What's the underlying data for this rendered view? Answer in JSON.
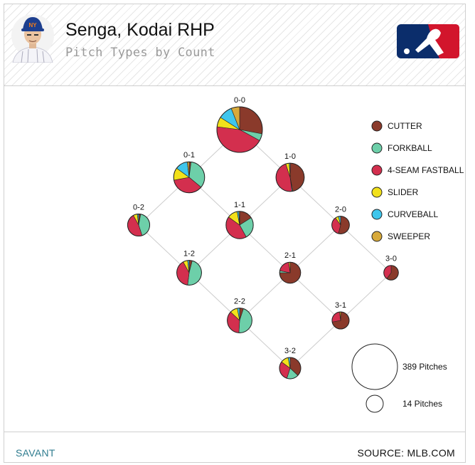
{
  "header": {
    "title": "Senga, Kodai RHP",
    "subtitle": "Pitch Types by Count"
  },
  "footer": {
    "left": "SAVANT",
    "right": "SOURCE: MLB.COM"
  },
  "colors": {
    "CUTTER": "#8a3a2b",
    "FORKBALL": "#6dcfa9",
    "4-SEAM FASTBALL": "#d32f4e",
    "SLIDER": "#f2e11b",
    "CURVEBALL": "#3fc6ec",
    "SWEEPER": "#d7a93a"
  },
  "chart_data": {
    "type": "pie",
    "legend": {
      "placement": "right",
      "items": [
        "CUTTER",
        "FORKBALL",
        "4-SEAM FASTBALL",
        "SLIDER",
        "CURVEBALL",
        "SWEEPER"
      ]
    },
    "size_legend": [
      {
        "label": "389 Pitches",
        "pitches": 389
      },
      {
        "label": "14 Pitches",
        "pitches": 14
      }
    ],
    "counts": [
      {
        "count": "0-0",
        "pitches": 389,
        "mix": {
          "CUTTER": 0.28,
          "FORKBALL": 0.05,
          "4-SEAM FASTBALL": 0.44,
          "SLIDER": 0.07,
          "CURVEBALL": 0.1,
          "SWEEPER": 0.06
        }
      },
      {
        "count": "0-1",
        "pitches": 180,
        "mix": {
          "CUTTER": 0.02,
          "FORKBALL": 0.34,
          "4-SEAM FASTBALL": 0.36,
          "SLIDER": 0.13,
          "CURVEBALL": 0.13,
          "SWEEPER": 0.02
        }
      },
      {
        "count": "1-0",
        "pitches": 150,
        "mix": {
          "CUTTER": 0.47,
          "FORKBALL": 0.01,
          "4-SEAM FASTBALL": 0.47,
          "SLIDER": 0.04,
          "CURVEBALL": 0.01,
          "SWEEPER": 0.0
        }
      },
      {
        "count": "0-2",
        "pitches": 92,
        "mix": {
          "CUTTER": 0.03,
          "FORKBALL": 0.42,
          "4-SEAM FASTBALL": 0.47,
          "SLIDER": 0.06,
          "CURVEBALL": 0.02,
          "SWEEPER": 0.0
        }
      },
      {
        "count": "1-1",
        "pitches": 140,
        "mix": {
          "CUTTER": 0.16,
          "FORKBALL": 0.26,
          "4-SEAM FASTBALL": 0.43,
          "SLIDER": 0.12,
          "CURVEBALL": 0.02,
          "SWEEPER": 0.01
        }
      },
      {
        "count": "2-0",
        "pitches": 58,
        "mix": {
          "CUTTER": 0.54,
          "FORKBALL": 0.0,
          "4-SEAM FASTBALL": 0.36,
          "SLIDER": 0.06,
          "CURVEBALL": 0.04,
          "SWEEPER": 0.0
        }
      },
      {
        "count": "1-2",
        "pitches": 115,
        "mix": {
          "CUTTER": 0.04,
          "FORKBALL": 0.48,
          "4-SEAM FASTBALL": 0.4,
          "SLIDER": 0.06,
          "CURVEBALL": 0.02,
          "SWEEPER": 0.0
        }
      },
      {
        "count": "2-1",
        "pitches": 83,
        "mix": {
          "CUTTER": 0.75,
          "FORKBALL": 0.03,
          "4-SEAM FASTBALL": 0.2,
          "SLIDER": 0.02,
          "CURVEBALL": 0.0,
          "SWEEPER": 0.0
        }
      },
      {
        "count": "3-0",
        "pitches": 40,
        "mix": {
          "CUTTER": 0.6,
          "FORKBALL": 0.0,
          "4-SEAM FASTBALL": 0.4,
          "SLIDER": 0.0,
          "CURVEBALL": 0.0,
          "SWEEPER": 0.0
        }
      },
      {
        "count": "2-2",
        "pitches": 115,
        "mix": {
          "CUTTER": 0.05,
          "FORKBALL": 0.46,
          "4-SEAM FASTBALL": 0.36,
          "SLIDER": 0.1,
          "CURVEBALL": 0.03,
          "SWEEPER": 0.0
        }
      },
      {
        "count": "3-1",
        "pitches": 55,
        "mix": {
          "CUTTER": 0.72,
          "FORKBALL": 0.0,
          "4-SEAM FASTBALL": 0.26,
          "SLIDER": 0.02,
          "CURVEBALL": 0.0,
          "SWEEPER": 0.0
        }
      },
      {
        "count": "3-2",
        "pitches": 85,
        "mix": {
          "CUTTER": 0.37,
          "FORKBALL": 0.18,
          "4-SEAM FASTBALL": 0.3,
          "SLIDER": 0.12,
          "CURVEBALL": 0.03,
          "SWEEPER": 0.0
        }
      }
    ]
  }
}
